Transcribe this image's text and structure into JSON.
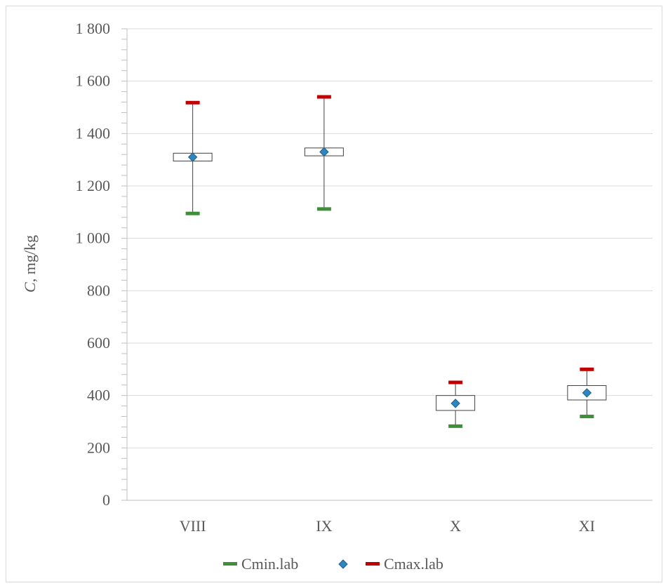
{
  "chart_data": {
    "type": "box",
    "title": "",
    "xlabel": "",
    "ylabel_italic": "C",
    "ylabel_rest": ", mg/kg",
    "ylim": [
      0,
      1800
    ],
    "y_ticks": [
      0,
      200,
      400,
      600,
      800,
      1000,
      1200,
      1400,
      1600,
      1800
    ],
    "y_tick_labels": [
      "0",
      "200",
      "400",
      "600",
      "800",
      "1 000",
      "1 200",
      "1 400",
      "1 600",
      "1 800"
    ],
    "grid": true,
    "legend_position": "bottom",
    "categories": [
      "VIII",
      "IX",
      "X",
      "XI"
    ],
    "series": [
      {
        "name": "Cmin.lab",
        "color": "#3f8f3a",
        "values": [
          1095,
          1112,
          283,
          320
        ]
      },
      {
        "name": "",
        "marker": "diamond",
        "color": "#2e86c1",
        "values": [
          1310,
          1330,
          370,
          410
        ]
      },
      {
        "name": "Cmax.lab",
        "color": "#c00000",
        "values": [
          1518,
          1540,
          450,
          500
        ]
      }
    ],
    "box_low": [
      1295,
      1315,
      343,
      383
    ],
    "box_high": [
      1325,
      1345,
      400,
      438
    ]
  }
}
